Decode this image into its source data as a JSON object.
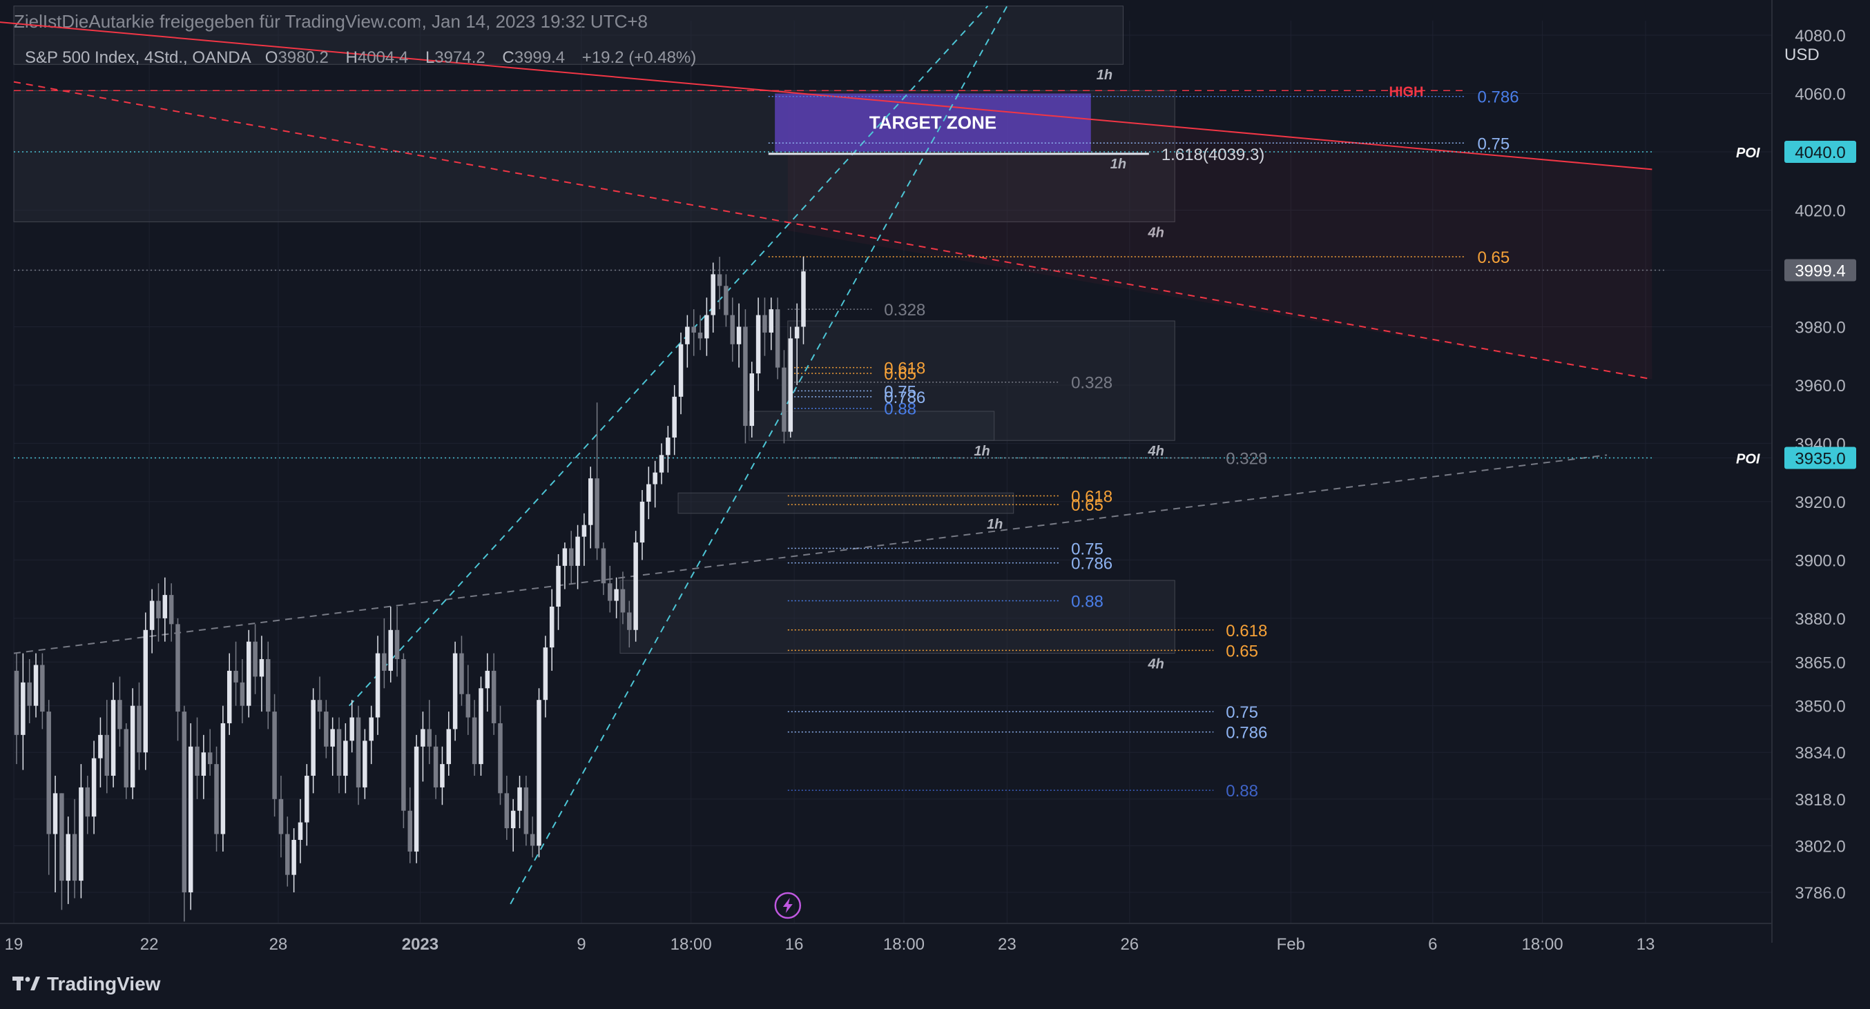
{
  "header": {
    "attribution": "ZielIstDieAutarkie freigegeben für TradingView.com, Jan 14, 2023 19:32 UTC+8"
  },
  "legend": {
    "symbol": "S&P 500 Index, 4Std., OANDA",
    "open_label": "O",
    "open": "3980.2",
    "high_label": "H",
    "high": "4004.4",
    "low_label": "L",
    "low": "3974.2",
    "close_label": "C",
    "close": "3999.4",
    "change": "+19.2 (+0.48%)"
  },
  "footer": {
    "brand": "TradingView"
  },
  "colors": {
    "background": "#131722",
    "bull": "#e0e3eb",
    "bear": "#787b86",
    "fib_gray": "#b2b5be",
    "fib_orange": "#f7a238",
    "fib_blue_light": "#8fb4f2",
    "fib_blue": "#4a7ee8",
    "fib_blue_dark": "#3f63c7",
    "trend_red": "#f23645",
    "channel_cyan": "#4dc6d6",
    "target_purple": "#5b3fb5",
    "price_tag_cyan": "#3cc8d8",
    "price_tag_gray": "#5d606b",
    "high_label_red": "#f23645"
  },
  "chart_data": {
    "type": "candlestick",
    "title": "S&P 500 Index, 4Std., OANDA",
    "currency": "USD",
    "ylim": [
      3772,
      4090
    ],
    "y_ticks": [
      "4080.0",
      "4060.0",
      "4040.0",
      "4020.0",
      "3999.4",
      "3980.0",
      "3960.0",
      "3940.0",
      "3935.0",
      "3920.0",
      "3900.0",
      "3880.0",
      "3865.0",
      "3850.0",
      "3834.0",
      "3818.0",
      "3802.0",
      "3786.0"
    ],
    "x_ticks": [
      {
        "label": "19",
        "index": 0
      },
      {
        "label": "22",
        "index": 21
      },
      {
        "label": "28",
        "index": 41
      },
      {
        "label": "2023",
        "index": 63,
        "bold": true
      },
      {
        "label": "9",
        "index": 88
      },
      {
        "label": "18:00",
        "index": 105
      },
      {
        "label": "16",
        "index": 121
      },
      {
        "label": "18:00",
        "index": 138
      },
      {
        "label": "23",
        "index": 154
      },
      {
        "label": "26",
        "index": 173
      },
      {
        "label": "Feb",
        "index": 198
      },
      {
        "label": "6",
        "index": 220
      },
      {
        "label": "18:00",
        "index": 237
      },
      {
        "label": "13",
        "index": 253
      }
    ],
    "candles": [
      [
        3862,
        3868,
        3830,
        3840
      ],
      [
        3840,
        3868,
        3828,
        3858
      ],
      [
        3858,
        3866,
        3844,
        3850
      ],
      [
        3850,
        3868,
        3846,
        3864
      ],
      [
        3864,
        3868,
        3842,
        3848
      ],
      [
        3848,
        3852,
        3792,
        3806
      ],
      [
        3806,
        3826,
        3786,
        3820
      ],
      [
        3820,
        3820,
        3780,
        3790
      ],
      [
        3790,
        3812,
        3782,
        3806
      ],
      [
        3806,
        3818,
        3784,
        3790
      ],
      [
        3790,
        3830,
        3784,
        3822
      ],
      [
        3822,
        3826,
        3806,
        3812
      ],
      [
        3812,
        3838,
        3806,
        3832
      ],
      [
        3832,
        3846,
        3822,
        3840
      ],
      [
        3840,
        3852,
        3820,
        3826
      ],
      [
        3826,
        3858,
        3822,
        3852
      ],
      [
        3852,
        3860,
        3836,
        3842
      ],
      [
        3842,
        3844,
        3818,
        3822
      ],
      [
        3822,
        3856,
        3818,
        3850
      ],
      [
        3850,
        3858,
        3828,
        3834
      ],
      [
        3834,
        3882,
        3828,
        3876
      ],
      [
        3876,
        3890,
        3868,
        3886
      ],
      [
        3886,
        3892,
        3872,
        3880
      ],
      [
        3880,
        3894,
        3872,
        3888
      ],
      [
        3888,
        3892,
        3872,
        3878
      ],
      [
        3878,
        3880,
        3838,
        3848
      ],
      [
        3848,
        3850,
        3776,
        3786
      ],
      [
        3786,
        3844,
        3780,
        3836
      ],
      [
        3836,
        3846,
        3818,
        3826
      ],
      [
        3826,
        3840,
        3818,
        3834
      ],
      [
        3834,
        3842,
        3826,
        3830
      ],
      [
        3830,
        3836,
        3800,
        3806
      ],
      [
        3806,
        3850,
        3800,
        3844
      ],
      [
        3844,
        3868,
        3840,
        3862
      ],
      [
        3862,
        3872,
        3850,
        3858
      ],
      [
        3858,
        3866,
        3844,
        3850
      ],
      [
        3850,
        3876,
        3846,
        3872
      ],
      [
        3872,
        3878,
        3854,
        3860
      ],
      [
        3860,
        3874,
        3848,
        3866
      ],
      [
        3866,
        3872,
        3842,
        3848
      ],
      [
        3848,
        3854,
        3812,
        3818
      ],
      [
        3818,
        3826,
        3798,
        3806
      ],
      [
        3806,
        3812,
        3788,
        3792
      ],
      [
        3792,
        3808,
        3786,
        3804
      ],
      [
        3804,
        3818,
        3796,
        3810
      ],
      [
        3810,
        3830,
        3802,
        3826
      ],
      [
        3826,
        3856,
        3820,
        3852
      ],
      [
        3852,
        3860,
        3842,
        3848
      ],
      [
        3848,
        3852,
        3832,
        3836
      ],
      [
        3836,
        3846,
        3826,
        3842
      ],
      [
        3842,
        3846,
        3820,
        3826
      ],
      [
        3826,
        3844,
        3820,
        3838
      ],
      [
        3838,
        3852,
        3834,
        3846
      ],
      [
        3846,
        3850,
        3816,
        3822
      ],
      [
        3822,
        3842,
        3818,
        3838
      ],
      [
        3838,
        3850,
        3830,
        3846
      ],
      [
        3846,
        3874,
        3840,
        3868
      ],
      [
        3868,
        3880,
        3856,
        3862
      ],
      [
        3862,
        3884,
        3858,
        3876
      ],
      [
        3876,
        3884,
        3860,
        3866
      ],
      [
        3866,
        3868,
        3808,
        3814
      ],
      [
        3814,
        3822,
        3796,
        3800
      ],
      [
        3800,
        3840,
        3796,
        3836
      ],
      [
        3836,
        3848,
        3824,
        3842
      ],
      [
        3842,
        3852,
        3830,
        3836
      ],
      [
        3836,
        3840,
        3818,
        3822
      ],
      [
        3822,
        3836,
        3816,
        3830
      ],
      [
        3830,
        3848,
        3826,
        3842
      ],
      [
        3842,
        3872,
        3838,
        3868
      ],
      [
        3868,
        3874,
        3850,
        3854
      ],
      [
        3854,
        3864,
        3840,
        3846
      ],
      [
        3846,
        3852,
        3826,
        3830
      ],
      [
        3830,
        3860,
        3826,
        3856
      ],
      [
        3856,
        3868,
        3848,
        3862
      ],
      [
        3862,
        3868,
        3840,
        3844
      ],
      [
        3844,
        3850,
        3816,
        3820
      ],
      [
        3820,
        3826,
        3804,
        3808
      ],
      [
        3808,
        3818,
        3800,
        3814
      ],
      [
        3814,
        3826,
        3808,
        3822
      ],
      [
        3822,
        3826,
        3802,
        3806
      ],
      [
        3806,
        3812,
        3798,
        3802
      ],
      [
        3802,
        3856,
        3798,
        3852
      ],
      [
        3852,
        3874,
        3846,
        3870
      ],
      [
        3870,
        3890,
        3862,
        3884
      ],
      [
        3884,
        3902,
        3876,
        3898
      ],
      [
        3898,
        3906,
        3890,
        3904
      ],
      [
        3904,
        3910,
        3892,
        3898
      ],
      [
        3898,
        3912,
        3890,
        3908
      ],
      [
        3908,
        3916,
        3898,
        3912
      ],
      [
        3912,
        3932,
        3904,
        3928
      ],
      [
        3928,
        3954,
        3900,
        3904
      ],
      [
        3904,
        3906,
        3888,
        3892
      ],
      [
        3892,
        3898,
        3882,
        3886
      ],
      [
        3886,
        3894,
        3880,
        3890
      ],
      [
        3890,
        3896,
        3878,
        3882
      ],
      [
        3882,
        3886,
        3870,
        3876
      ],
      [
        3876,
        3910,
        3872,
        3906
      ],
      [
        3906,
        3924,
        3900,
        3920
      ],
      [
        3920,
        3932,
        3914,
        3926
      ],
      [
        3926,
        3934,
        3918,
        3930
      ],
      [
        3930,
        3940,
        3926,
        3936
      ],
      [
        3936,
        3946,
        3930,
        3942
      ],
      [
        3942,
        3960,
        3936,
        3956
      ],
      [
        3956,
        3978,
        3950,
        3974
      ],
      [
        3974,
        3984,
        3966,
        3980
      ],
      [
        3980,
        3986,
        3970,
        3978
      ],
      [
        3978,
        3984,
        3972,
        3976
      ],
      [
        3976,
        3990,
        3970,
        3984
      ],
      [
        3984,
        4002,
        3978,
        3998
      ],
      [
        3998,
        4004,
        3986,
        3994
      ],
      [
        3994,
        3998,
        3980,
        3984
      ],
      [
        3984,
        3990,
        3968,
        3974
      ],
      [
        3974,
        3988,
        3966,
        3980
      ],
      [
        3980,
        3986,
        3940,
        3946
      ],
      [
        3946,
        3968,
        3942,
        3964
      ],
      [
        3964,
        3990,
        3958,
        3984
      ],
      [
        3984,
        3990,
        3970,
        3978
      ],
      [
        3978,
        3990,
        3972,
        3986
      ],
      [
        3986,
        3990,
        3962,
        3966
      ],
      [
        3966,
        3972,
        3940,
        3944
      ],
      [
        3944,
        3980,
        3942,
        3976
      ],
      [
        3976,
        3988,
        3960,
        3980
      ],
      [
        3980,
        4004,
        3974,
        3999
      ]
    ],
    "trendlines": [
      {
        "name": "red-descending-solid",
        "style": "solid",
        "color": "trend_red",
        "from": [
          -20,
          4088
        ],
        "to": [
          254,
          4034
        ]
      },
      {
        "name": "red-descending-dashed",
        "style": "dashed",
        "color": "trend_red",
        "from": [
          0,
          4064
        ],
        "to": [
          254,
          3962
        ]
      },
      {
        "name": "gray-ascending-dashed",
        "style": "dashed",
        "color": "bear",
        "from": [
          0,
          3868
        ],
        "to": [
          247,
          3936
        ]
      },
      {
        "name": "cyan-channel-upper",
        "style": "dashed",
        "color": "channel_cyan",
        "from": [
          52,
          3850
        ],
        "to": [
          151,
          4090
        ]
      },
      {
        "name": "cyan-channel-lower",
        "style": "dashed",
        "color": "channel_cyan",
        "from": [
          77,
          3782
        ],
        "to": [
          154,
          4090
        ]
      }
    ],
    "horizontal_levels": [
      {
        "name": "high-line",
        "style": "dashed",
        "color": "trend_red",
        "price": 4061,
        "from": 0,
        "to": 225,
        "label": "HIGH"
      },
      {
        "name": "poi-4040",
        "style": "dotted",
        "color": "channel_cyan",
        "price": 4040,
        "from": 0,
        "to": 254,
        "label": "POI",
        "tag": "4040.0"
      },
      {
        "name": "poi-3935",
        "style": "dotted",
        "color": "channel_cyan",
        "price": 3935,
        "from": 0,
        "to": 254,
        "label": "POI",
        "tag": "3935.0"
      },
      {
        "name": "last-price",
        "style": "dotted",
        "color": "bear",
        "price": 3999.4,
        "from": 0,
        "to": 256,
        "tag": "3999.4"
      },
      {
        "name": "target-zone-line",
        "style": "solid",
        "color": "bull",
        "price": 4039.3,
        "from": 117,
        "to": 176,
        "label": "1.618(4039.3)"
      }
    ],
    "fib_levels": [
      {
        "label": "0.786",
        "price": 4059,
        "from": 117,
        "to": 225,
        "color": "fib_blue"
      },
      {
        "label": "0.75",
        "price": 4043,
        "from": 117,
        "to": 225,
        "color": "fib_blue_light"
      },
      {
        "label": "0.65",
        "price": 4004,
        "from": 117,
        "to": 225,
        "color": "fib_orange"
      },
      {
        "label": "0.328",
        "price": 3986,
        "from": 120,
        "to": 133,
        "color": "bear"
      },
      {
        "label": "0.618",
        "price": 3966,
        "from": 121,
        "to": 133,
        "color": "fib_orange"
      },
      {
        "label": "0.65",
        "price": 3964,
        "from": 121,
        "to": 133,
        "color": "fib_orange"
      },
      {
        "label": "0.328",
        "price": 3961,
        "from": 121,
        "to": 162,
        "color": "bear"
      },
      {
        "label": "0.75",
        "price": 3958,
        "from": 121,
        "to": 133,
        "color": "fib_blue_light"
      },
      {
        "label": "0.786",
        "price": 3956,
        "from": 121,
        "to": 133,
        "color": "fib_blue_light"
      },
      {
        "label": "0.88",
        "price": 3952,
        "from": 121,
        "to": 133,
        "color": "fib_blue"
      },
      {
        "label": "0.328",
        "price": 3935,
        "from": 121,
        "to": 186,
        "color": "bear"
      },
      {
        "label": "0.618",
        "price": 3922,
        "from": 120,
        "to": 162,
        "color": "fib_orange"
      },
      {
        "label": "0.65",
        "price": 3919,
        "from": 120,
        "to": 162,
        "color": "fib_orange"
      },
      {
        "label": "0.75",
        "price": 3904,
        "from": 120,
        "to": 162,
        "color": "fib_blue_light"
      },
      {
        "label": "0.786",
        "price": 3899,
        "from": 120,
        "to": 162,
        "color": "fib_blue_light"
      },
      {
        "label": "0.88",
        "price": 3886,
        "from": 120,
        "to": 162,
        "color": "fib_blue"
      },
      {
        "label": "0.618",
        "price": 3876,
        "from": 120,
        "to": 186,
        "color": "fib_orange"
      },
      {
        "label": "0.65",
        "price": 3869,
        "from": 120,
        "to": 186,
        "color": "fib_orange"
      },
      {
        "label": "0.75",
        "price": 3848,
        "from": 120,
        "to": 186,
        "color": "fib_blue_light"
      },
      {
        "label": "0.786",
        "price": 3841,
        "from": 120,
        "to": 186,
        "color": "fib_blue_light"
      },
      {
        "label": "0.88",
        "price": 3821,
        "from": 120,
        "to": 186,
        "color": "fib_blue_dark"
      }
    ],
    "zones": [
      {
        "name": "zone-top-1h",
        "from": 0,
        "to": 172,
        "top": 4090,
        "bottom": 4070,
        "label": "1h",
        "label_at": 170
      },
      {
        "name": "zone-target-4h",
        "from": 0,
        "to": 180,
        "top": 4061,
        "bottom": 4016,
        "label": "4h",
        "label_at": 178
      },
      {
        "name": "zone-mid-4h",
        "from": 120,
        "to": 180,
        "top": 3982,
        "bottom": 3941,
        "label": "4h",
        "label_at": 178
      },
      {
        "name": "zone-mid-1h",
        "from": 114,
        "to": 152,
        "top": 3951,
        "bottom": 3941,
        "label": "1h",
        "label_at": 151
      },
      {
        "name": "zone-small-1h",
        "from": 103,
        "to": 155,
        "top": 3923,
        "bottom": 3916,
        "label": "1h",
        "label_at": 153
      },
      {
        "name": "zone-low-4h",
        "from": 94,
        "to": 180,
        "top": 3893,
        "bottom": 3868,
        "label": "4h",
        "label_at": 178
      }
    ],
    "target_zone": {
      "label": "TARGET ZONE",
      "from": 118,
      "to": 167,
      "top": 4060,
      "bottom": 4040,
      "tf_label": "1h"
    }
  }
}
